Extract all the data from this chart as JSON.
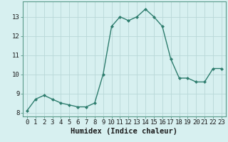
{
  "x": [
    0,
    1,
    2,
    3,
    4,
    5,
    6,
    7,
    8,
    9,
    10,
    11,
    12,
    13,
    14,
    15,
    16,
    17,
    18,
    19,
    20,
    21,
    22,
    23
  ],
  "y": [
    8.1,
    8.7,
    8.9,
    8.7,
    8.5,
    8.4,
    8.3,
    8.3,
    8.5,
    10.0,
    12.5,
    13.0,
    12.8,
    13.0,
    13.4,
    13.0,
    12.5,
    10.8,
    9.8,
    9.8,
    9.6,
    9.6,
    10.3,
    10.3
  ],
  "line_color": "#2e7d6e",
  "marker": "D",
  "marker_size": 2,
  "bg_color": "#d7f0f0",
  "grid_color": "#b8d8d8",
  "xlabel": "Humidex (Indice chaleur)",
  "ylabel": "",
  "xlim": [
    -0.5,
    23.5
  ],
  "ylim": [
    7.8,
    13.8
  ],
  "yticks": [
    8,
    9,
    10,
    11,
    12,
    13
  ],
  "xticks": [
    0,
    1,
    2,
    3,
    4,
    5,
    6,
    7,
    8,
    9,
    10,
    11,
    12,
    13,
    14,
    15,
    16,
    17,
    18,
    19,
    20,
    21,
    22,
    23
  ],
  "tick_fontsize": 6.5,
  "xlabel_fontsize": 7.5,
  "line_width": 1.0,
  "spine_color": "#5a9a8a"
}
